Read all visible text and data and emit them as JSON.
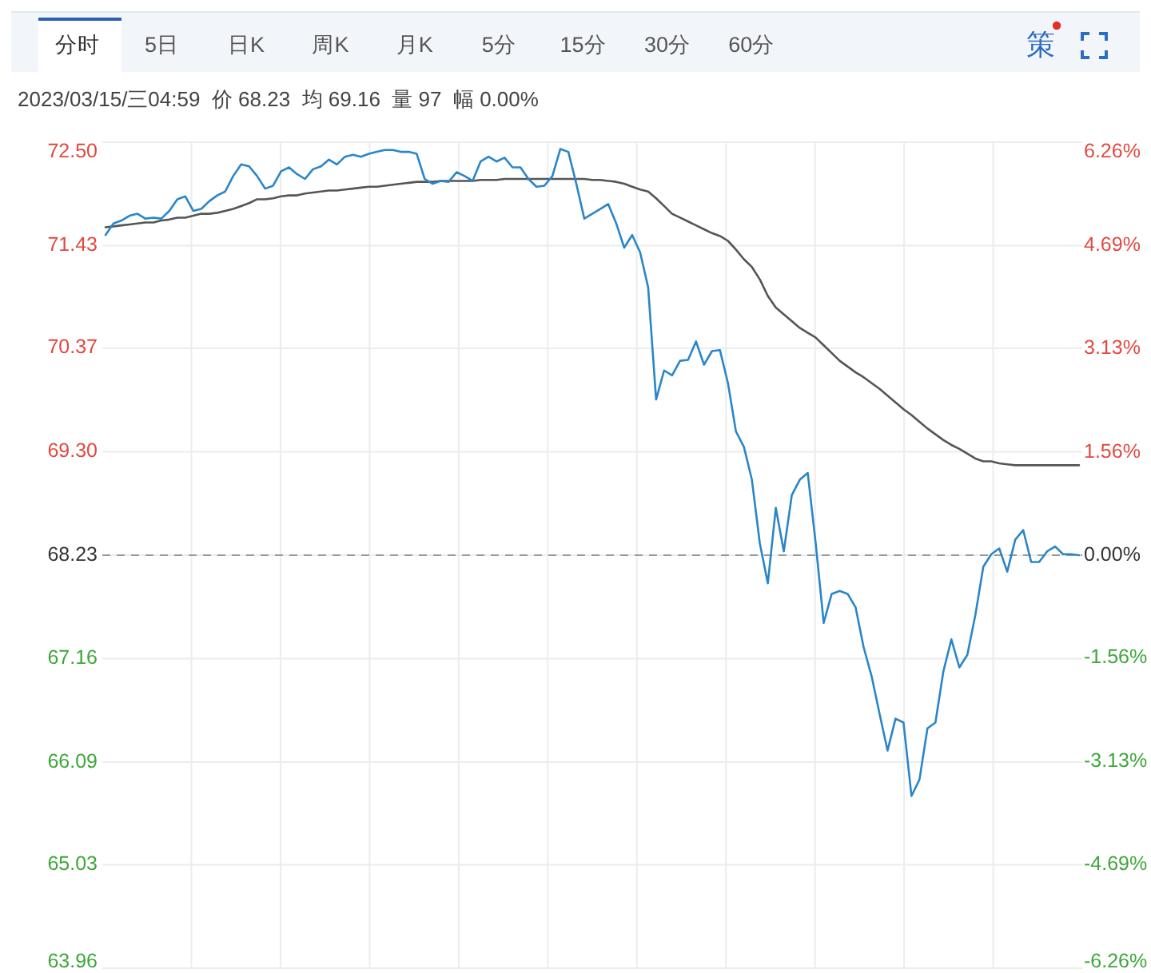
{
  "chart_data": {
    "type": "line",
    "subtitle": "2023/03/15/三04:59  价 68.23  均 69.16  量 97  幅 0.00%",
    "annotations": [
      "分时",
      "5日",
      "日K",
      "周K",
      "月K",
      "5分",
      "15分",
      "30分",
      "60分",
      "策"
    ],
    "categories": [
      null,
      null,
      null,
      null,
      null,
      null,
      null,
      null,
      null,
      null,
      null,
      null,
      null,
      null,
      null,
      null,
      null,
      null,
      null,
      null,
      null,
      null,
      null,
      null,
      null,
      null,
      null,
      null,
      null,
      null,
      null,
      null,
      null,
      null,
      null,
      null,
      null,
      null,
      null,
      null,
      null,
      null,
      null,
      null,
      null,
      null,
      null,
      null,
      null,
      null,
      null,
      null,
      null,
      null,
      null,
      null,
      null,
      null,
      null,
      null,
      null,
      null,
      null,
      null,
      null,
      null,
      null,
      null,
      null,
      null,
      null,
      null,
      null,
      null,
      null,
      null,
      null,
      null,
      null,
      null,
      null,
      null,
      null,
      null,
      null,
      null,
      null,
      null,
      null,
      null,
      null,
      null,
      null,
      null,
      null,
      null,
      null,
      null,
      null,
      null,
      null,
      null,
      null,
      null,
      null,
      null,
      null,
      null,
      null,
      null,
      null,
      null,
      null,
      null,
      null,
      null,
      null,
      null,
      null,
      null,
      null,
      null,
      null
    ],
    "series": [
      {
        "color": "#2a86c8",
        "values": [
          71.54,
          71.66,
          71.69,
          71.74,
          71.76,
          71.71,
          71.72,
          71.71,
          71.79,
          71.91,
          71.94,
          71.79,
          71.81,
          71.89,
          71.95,
          71.99,
          72.15,
          72.27,
          72.25,
          72.15,
          72.02,
          72.05,
          72.2,
          72.24,
          72.17,
          72.12,
          72.22,
          72.25,
          72.32,
          72.27,
          72.35,
          72.37,
          72.35,
          72.38,
          72.4,
          72.42,
          72.42,
          72.4,
          72.4,
          72.38,
          72.12,
          72.07,
          72.1,
          72.09,
          72.19,
          72.15,
          72.1,
          72.3,
          72.35,
          72.3,
          72.34,
          72.24,
          72.24,
          72.12,
          72.04,
          72.05,
          72.15,
          72.43,
          72.4,
          72.07,
          71.71,
          71.76,
          71.81,
          71.86,
          71.66,
          71.41,
          71.54,
          71.36,
          71.0,
          69.84,
          70.14,
          70.09,
          70.24,
          70.25,
          70.44,
          70.2,
          70.34,
          70.35,
          70.01,
          69.51,
          69.35,
          69.01,
          68.35,
          67.94,
          68.72,
          68.27,
          68.85,
          69.01,
          69.08,
          68.35,
          67.53,
          67.83,
          67.86,
          67.83,
          67.69,
          67.28,
          66.98,
          66.59,
          66.21,
          66.54,
          66.5,
          65.74,
          65.91,
          66.44,
          66.5,
          67.03,
          67.36,
          67.07,
          67.2,
          67.61,
          68.11,
          68.24,
          68.3,
          68.06,
          68.39,
          68.49,
          68.16,
          68.16,
          68.27,
          68.32,
          68.24,
          68.24,
          68.23
        ]
      },
      {
        "color": "#555555",
        "values": [
          71.62,
          71.63,
          71.64,
          71.65,
          71.66,
          71.67,
          71.67,
          71.69,
          71.7,
          71.72,
          71.72,
          71.74,
          71.76,
          71.76,
          71.77,
          71.79,
          71.81,
          71.84,
          71.87,
          71.91,
          71.91,
          71.92,
          71.94,
          71.95,
          71.95,
          71.97,
          71.98,
          71.99,
          72.0,
          72.0,
          72.01,
          72.02,
          72.03,
          72.04,
          72.04,
          72.05,
          72.06,
          72.07,
          72.08,
          72.09,
          72.09,
          72.09,
          72.1,
          72.1,
          72.1,
          72.1,
          72.1,
          72.11,
          72.11,
          72.11,
          72.12,
          72.12,
          72.12,
          72.12,
          72.12,
          72.12,
          72.12,
          72.12,
          72.12,
          72.12,
          72.12,
          72.11,
          72.11,
          72.1,
          72.09,
          72.07,
          72.04,
          72.01,
          71.99,
          71.92,
          71.84,
          71.76,
          71.72,
          71.68,
          71.64,
          71.6,
          71.56,
          71.53,
          71.48,
          71.39,
          71.29,
          71.21,
          71.08,
          70.91,
          70.79,
          70.72,
          70.65,
          70.58,
          70.53,
          70.48,
          70.4,
          70.32,
          70.24,
          70.18,
          70.12,
          70.07,
          70.01,
          69.95,
          69.88,
          69.81,
          69.74,
          69.68,
          69.61,
          69.54,
          69.48,
          69.42,
          69.37,
          69.33,
          69.28,
          69.23,
          69.2,
          69.2,
          69.18,
          69.17,
          69.16,
          69.16,
          69.16,
          69.16,
          69.16,
          69.16,
          69.16,
          69.16,
          69.16
        ]
      }
    ],
    "ylim": [
      63.96,
      72.5
    ],
    "yticks": [
      {
        "value": 72.5,
        "label": "72.50"
      },
      71.43,
      70.37,
      {
        "value": 69.3,
        "label": "69.30"
      },
      68.23,
      67.16,
      66.09,
      65.03,
      63.96
    ],
    "y2lim": [
      -6.26,
      6.26
    ],
    "y2ticks": [
      {
        "value": 6.26,
        "label": "6.26%"
      },
      {
        "value": 4.69,
        "label": "4.69%"
      },
      {
        "value": 3.13,
        "label": "3.13%"
      },
      {
        "value": 1.56,
        "label": "1.56%"
      },
      {
        "value": 0,
        "label": "0.00%"
      },
      {
        "value": -1.56,
        "label": "-1.56%"
      },
      {
        "value": -3.13,
        "label": "-3.13%"
      },
      {
        "value": -4.69,
        "label": "-4.69%"
      },
      {
        "value": -6.26,
        "label": "-6.26%"
      }
    ],
    "ref_lines": [
      {
        "axis": "y",
        "value": 68.23,
        "color": "#999999",
        "line_style": "dashed"
      }
    ],
    "grid": true,
    "tick_labels": "y"
  }
}
